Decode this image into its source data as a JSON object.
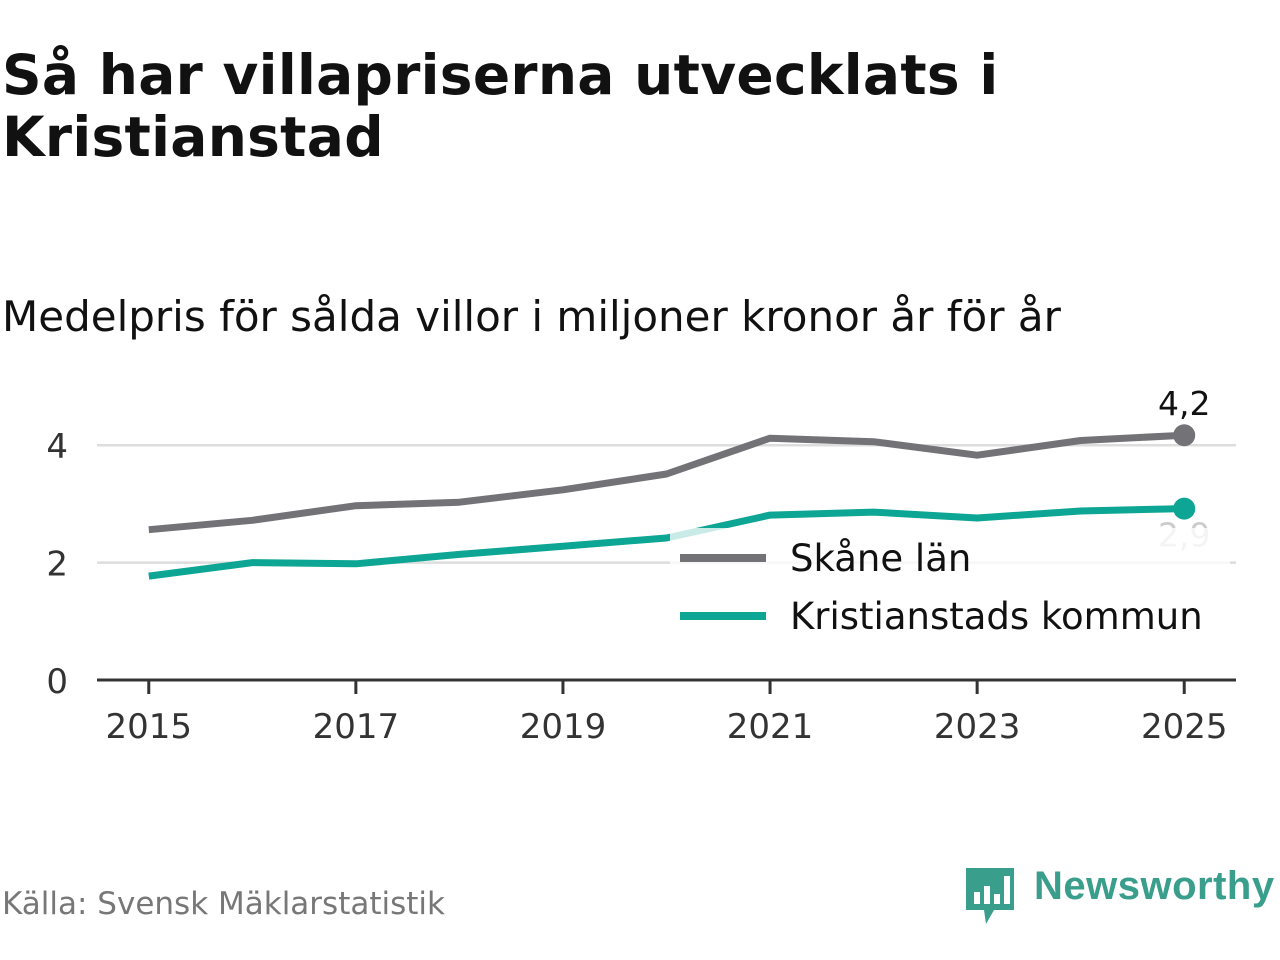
{
  "title": "Så har villapriserna utvecklats i Kristianstad",
  "subtitle": "Medelpris för sålda villor i miljoner kronor år för år",
  "source": "Källa: Svensk Mäklarstatistik",
  "brand": "Newsworthy",
  "colors": {
    "series1": "#737277",
    "series2": "#0da594",
    "grid": "#dddddd",
    "axis": "#333333"
  },
  "chart_data": {
    "type": "line",
    "x": [
      2015,
      2016,
      2017,
      2018,
      2019,
      2020,
      2021,
      2022,
      2023,
      2024,
      2025
    ],
    "xticks": [
      2015,
      2017,
      2019,
      2021,
      2023,
      2025
    ],
    "xtick_labels": [
      "2015",
      "2017",
      "2019",
      "2021",
      "2023",
      "2025"
    ],
    "yticks": [
      0,
      2,
      4
    ],
    "ytick_labels": [
      "0",
      "2",
      "4"
    ],
    "ylim": [
      0,
      4.6
    ],
    "xlim": [
      2014.5,
      2025.5
    ],
    "series": [
      {
        "name": "Skåne län",
        "color": "#737277",
        "values": [
          2.56,
          2.72,
          2.97,
          3.03,
          3.24,
          3.51,
          4.12,
          4.06,
          3.83,
          4.08,
          4.17
        ],
        "end_label": "4,2"
      },
      {
        "name": "Kristianstads kommun",
        "color": "#0da594",
        "values": [
          1.77,
          2.0,
          1.98,
          2.14,
          2.28,
          2.42,
          2.81,
          2.86,
          2.76,
          2.88,
          2.92
        ],
        "end_label": "2,9"
      }
    ],
    "legend_position": "inside-right"
  }
}
